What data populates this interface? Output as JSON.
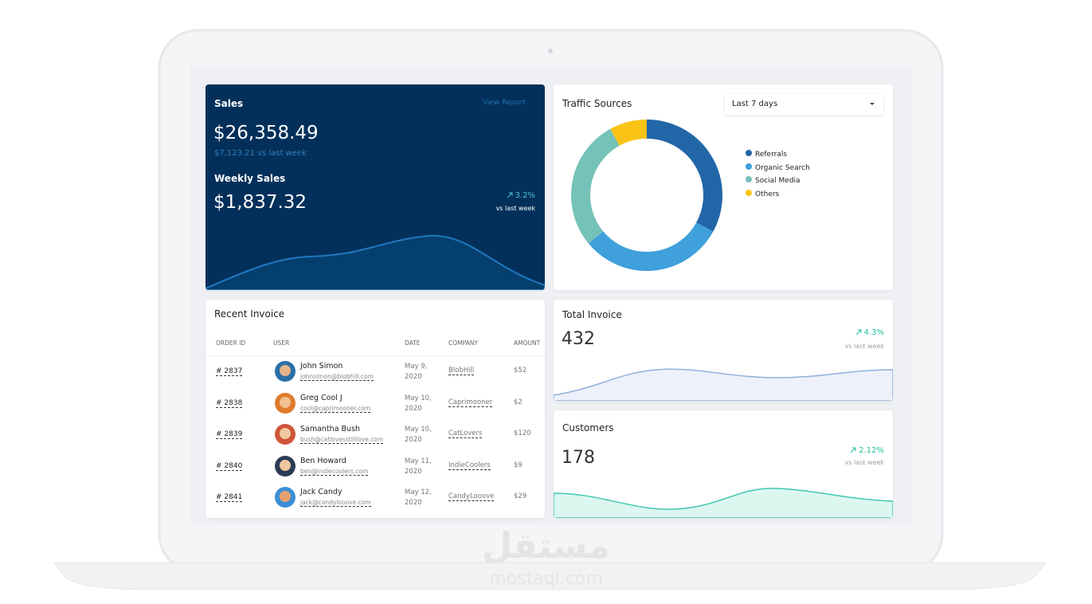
{
  "sales": {
    "title": "Sales",
    "view_report": "View Report",
    "amount": "$26,358.49",
    "comparison": "$7,123.21 vs last week",
    "weekly_title": "Weekly Sales",
    "weekly_amount": "$1,837.32",
    "change": "3.2%",
    "change_label": "vs last week"
  },
  "traffic": {
    "title": "Traffic Sources",
    "range": "Last 7 days",
    "sources": [
      {
        "name": "Referrals",
        "value": 33,
        "color": "#2266a8"
      },
      {
        "name": "Organic Search",
        "value": 31,
        "color": "#3fa0dc"
      },
      {
        "name": "Social Media",
        "value": 28,
        "color": "#74c2b8"
      },
      {
        "name": "Others",
        "value": 8,
        "color": "#f9c316"
      }
    ]
  },
  "invoice": {
    "title": "Recent Invoice",
    "columns": [
      "ORDER ID",
      "USER",
      "DATE",
      "COMPANY",
      "AMOUNT"
    ],
    "rows": [
      [
        "# 2837",
        "John Simon",
        "johnsimon@blobhill.com",
        "May 9, 2020",
        "BlobHill",
        "$52"
      ],
      [
        "# 2838",
        "Greg Cool J",
        "cool@caprimooner.com",
        "May 10, 2020",
        "Caprimooner",
        "$2"
      ],
      [
        "# 2839",
        "Samantha Bush",
        "bush@catlovesstilllove.com",
        "May 10, 2020",
        "CatLovers",
        "$120"
      ],
      [
        "# 2840",
        "Ben Howard",
        "ben@indiecoolers.com",
        "May 11, 2020",
        "IndieCoolers",
        "$9"
      ],
      [
        "# 2841",
        "Jack Candy",
        "jack@candylooove.com",
        "May 12, 2020",
        "CandyLooove",
        "$29"
      ]
    ]
  },
  "total_invoice": {
    "title": "Total Invoice",
    "value": 432,
    "change": "4.3%",
    "change_label": "vs last week"
  },
  "customers": {
    "title": "Customers",
    "value": 178,
    "change": "2.12%",
    "change_label": "vs last week"
  },
  "watermark": {
    "arabic": "مستقل",
    "latin": "mostaql.com"
  }
}
